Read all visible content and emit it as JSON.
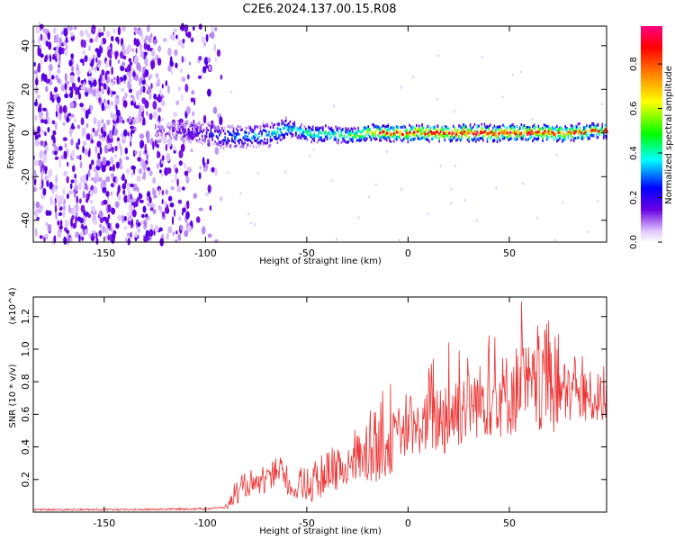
{
  "figure_title": "C2E6.2024.137.00.15.R08",
  "chart_data": [
    {
      "type": "heatmap",
      "title": "C2E6.2024.137.00.15.R08",
      "xlabel": "Height of straight line (km)",
      "ylabel": "Frequency (Hz)",
      "xlim": [
        -185,
        98
      ],
      "ylim": [
        -50,
        49
      ],
      "xticks": [
        -150,
        -100,
        -50,
        0,
        50
      ],
      "xtick_labels": [
        "-150",
        "-100",
        "-50",
        "0",
        "50"
      ],
      "yticks": [
        -40,
        -20,
        0,
        20,
        40
      ],
      "ytick_labels": [
        "-40",
        "-20",
        "0",
        "20",
        "40"
      ],
      "colorbar": {
        "label": "Normalized spectral amplitude",
        "range": [
          0,
          0.97
        ],
        "ticks": [
          0.0,
          0.2,
          0.4,
          0.6,
          0.8
        ],
        "tick_labels": [
          "0.0",
          "0.2",
          "0.4",
          "0.6",
          "0.8"
        ],
        "colormap": [
          "#ffffff",
          "#5a00d8",
          "#0000ff",
          "#00ffff",
          "#00ff00",
          "#ffff00",
          "#ff8000",
          "#ff0000",
          "#ff0080"
        ]
      },
      "ridge": {
        "description": "narrow band near 0 Hz; weak at < -90 km, strongest from -20 km upward",
        "x": [
          -120,
          -100,
          -90,
          -70,
          -60,
          -50,
          -30,
          -20,
          0,
          20,
          50,
          80,
          98
        ],
        "center_hz": [
          1,
          0,
          -2,
          -1,
          2,
          0,
          -1,
          0,
          0,
          0,
          0,
          0,
          1
        ],
        "amplitude": [
          0.15,
          0.25,
          0.35,
          0.4,
          0.45,
          0.5,
          0.55,
          0.75,
          0.85,
          0.9,
          0.9,
          0.85,
          0.6
        ]
      }
    },
    {
      "type": "line",
      "xlabel": "Height of straight line (km)",
      "ylabel": "SNR (10 * v/v)",
      "y_multiplier": "(x10^4)",
      "xlim": [
        -185,
        98
      ],
      "ylim": [
        0,
        1.32
      ],
      "xticks": [
        -150,
        -100,
        -50,
        0,
        50
      ],
      "xtick_labels": [
        "-150",
        "-100",
        "-50",
        "0",
        "50"
      ],
      "yticks": [
        0.2,
        0.4,
        0.6,
        0.8,
        1.0,
        1.2
      ],
      "ytick_labels": [
        "0.2",
        "0.4",
        "0.6",
        "0.8",
        "1.0",
        "1.2"
      ],
      "line_color": "#ee3333",
      "series": [
        {
          "name": "SNR envelope",
          "x": [
            -185,
            -140,
            -100,
            -90,
            -85,
            -80,
            -70,
            -63,
            -58,
            -50,
            -40,
            -30,
            -20,
            -10,
            0,
            10,
            20,
            30,
            40,
            50,
            56,
            60,
            70,
            80,
            90,
            98
          ],
          "y_mean": [
            0.015,
            0.015,
            0.02,
            0.03,
            0.1,
            0.15,
            0.18,
            0.22,
            0.14,
            0.14,
            0.2,
            0.26,
            0.32,
            0.42,
            0.48,
            0.55,
            0.6,
            0.66,
            0.7,
            0.72,
            0.78,
            0.75,
            0.72,
            0.72,
            0.7,
            0.7
          ],
          "y_peak": [
            0.03,
            0.03,
            0.04,
            0.06,
            0.2,
            0.25,
            0.3,
            0.37,
            0.25,
            0.3,
            0.38,
            0.45,
            0.6,
            0.8,
            0.72,
            0.9,
            1.1,
            1.05,
            1.15,
            1.2,
            1.32,
            1.25,
            1.2,
            1.05,
            1.0,
            0.95
          ]
        }
      ]
    }
  ]
}
